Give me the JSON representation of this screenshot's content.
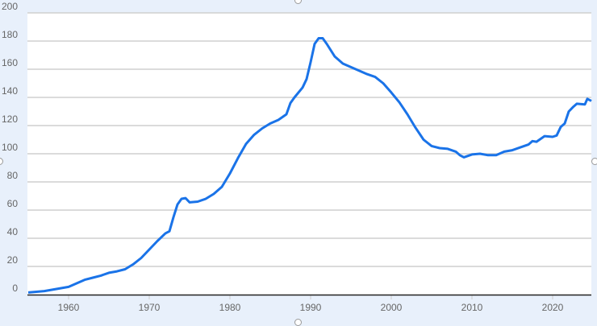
{
  "chart_data": {
    "type": "line",
    "title": "",
    "xlabel": "",
    "ylabel": "",
    "xlim": [
      1955,
      2024.8
    ],
    "ylim": [
      0,
      200
    ],
    "grid": true,
    "line_color": "#1a73e8",
    "x_ticks": [
      "1960",
      "1970",
      "1980",
      "1990",
      "2000",
      "2010",
      "2020"
    ],
    "y_ticks": [
      "0",
      "20",
      "40",
      "60",
      "80",
      "100",
      "120",
      "140",
      "160",
      "180",
      "200"
    ],
    "series": [
      {
        "x": [
          1955,
          1957,
          1959,
          1960,
          1961,
          1962,
          1963,
          1964,
          1965,
          1966,
          1967,
          1968,
          1969,
          1970,
          1971,
          1972,
          1972.5,
          1973,
          1973.5,
          1974,
          1974.5,
          1975,
          1976,
          1977,
          1978,
          1979,
          1980,
          1981,
          1982,
          1983,
          1984,
          1985,
          1986,
          1987,
          1987.5,
          1988,
          1989,
          1989.5,
          1990,
          1990.5,
          1991,
          1991.5,
          1992,
          1993,
          1994,
          1995,
          1996,
          1997,
          1998,
          1999,
          2000,
          2001,
          2002,
          2003,
          2004,
          2005,
          2006,
          2007,
          2008,
          2008.5,
          2009,
          2010,
          2011,
          2012,
          2013,
          2014,
          2015,
          2016,
          2017,
          2017.5,
          2018,
          2019,
          2020,
          2020.5,
          2021,
          2021.5,
          2022,
          2022.5,
          2023,
          2024,
          2024.3,
          2024.8
        ],
        "y": [
          1.5,
          2.5,
          4.5,
          5.5,
          8,
          10.5,
          12,
          13.5,
          15.5,
          16.5,
          18,
          21.5,
          26,
          32,
          38,
          43.5,
          45,
          55,
          64,
          68,
          68.5,
          65.5,
          66,
          68,
          71.5,
          76.5,
          86,
          97,
          107,
          113.5,
          118,
          121.5,
          124,
          128,
          136,
          140,
          147,
          153,
          165,
          178,
          182,
          182,
          178,
          169,
          164,
          161.5,
          159,
          156.5,
          154.5,
          150,
          143.5,
          136.5,
          128,
          118.5,
          110,
          105.5,
          104,
          103.5,
          101.5,
          99,
          97.5,
          99.5,
          100,
          99,
          99,
          101.5,
          102.5,
          104.5,
          106.5,
          109,
          108.5,
          112.5,
          112,
          113,
          119,
          121.5,
          130,
          133,
          135.5,
          135,
          139,
          137.5
        ]
      }
    ]
  }
}
